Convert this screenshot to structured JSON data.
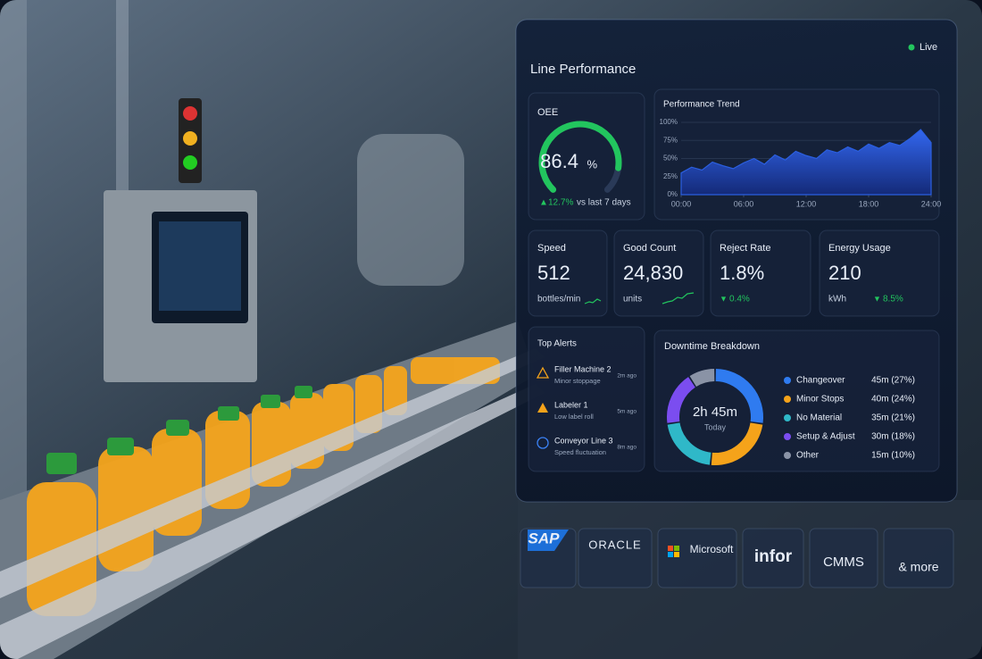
{
  "dashboard": {
    "title": "Line Performance",
    "status": "Live",
    "oee": {
      "label": "OEE",
      "value": 86.4,
      "unit": "%",
      "gauge_lim": [
        0,
        100
      ],
      "delta": "12.7%",
      "delta_text": "vs last 7 days"
    },
    "trend": {
      "type": "area",
      "title": "Performance Trend",
      "color": "#2b5fe0",
      "x": [
        0,
        1,
        2,
        3,
        4,
        5,
        6,
        7,
        8,
        9,
        10,
        11,
        12,
        13,
        14,
        15,
        16,
        17,
        18,
        19,
        20,
        21,
        22,
        23,
        24
      ],
      "values": [
        30,
        38,
        34,
        45,
        40,
        36,
        44,
        50,
        42,
        55,
        48,
        60,
        54,
        50,
        62,
        58,
        66,
        60,
        70,
        64,
        72,
        68,
        78,
        90,
        72
      ],
      "xlim": [
        0,
        24
      ],
      "ylim": [
        0,
        100
      ],
      "xticks": [
        {
          "value": 0,
          "label": "00:00"
        },
        {
          "value": 6,
          "label": "06:00"
        },
        {
          "value": 12,
          "label": "12:00"
        },
        {
          "value": 18,
          "label": "18:00"
        },
        {
          "value": 24,
          "label": "24:00"
        }
      ],
      "yticks": [
        {
          "value": 0,
          "label": "0%"
        },
        {
          "value": 25,
          "label": "25%"
        },
        {
          "value": 50,
          "label": "50%"
        },
        {
          "value": 75,
          "label": "75%"
        },
        {
          "value": 100,
          "label": "100%"
        }
      ]
    },
    "metrics": [
      {
        "label": "Speed",
        "value": "512",
        "unit": "bottles/min"
      },
      {
        "label": "Good Count",
        "value": "24,830",
        "unit": "units"
      },
      {
        "label": "Reject Rate",
        "value": "1.8%",
        "delta": "0.4%"
      },
      {
        "label": "Energy Usage",
        "value": "210",
        "unit": "kWh",
        "delta": "8.5%"
      }
    ],
    "alerts": {
      "title": "Top Alerts",
      "items": [
        {
          "title": "Filler Machine 2",
          "detail": "Minor stoppage",
          "time": "2m ago"
        },
        {
          "title": "Labeler 1",
          "detail": "Low label roll",
          "time": "5m ago"
        },
        {
          "title": "Conveyor Line 3",
          "detail": "Speed fluctuation",
          "time": "8m ago"
        }
      ]
    },
    "downtime": {
      "type": "donut",
      "title": "Downtime Breakdown",
      "total": "2h 45m",
      "total_label": "Today",
      "categories": [
        "Changeover",
        "Minor Stops",
        "No Material",
        "Setup & Adjust",
        "Other"
      ],
      "values": [
        45,
        40,
        35,
        30,
        15
      ],
      "value_labels": [
        "45m (27%)",
        "40m (24%)",
        "35m (21%)",
        "30m (18%)",
        "15m (10%)"
      ],
      "colors": [
        "#2f7bf0",
        "#f5a31a",
        "#2fb8c8",
        "#7b4df0",
        "#8a93a6"
      ]
    },
    "integrations": [
      "SAP",
      "ORACLE",
      "Microsoft",
      "infor",
      "CMMS",
      "& more"
    ]
  }
}
